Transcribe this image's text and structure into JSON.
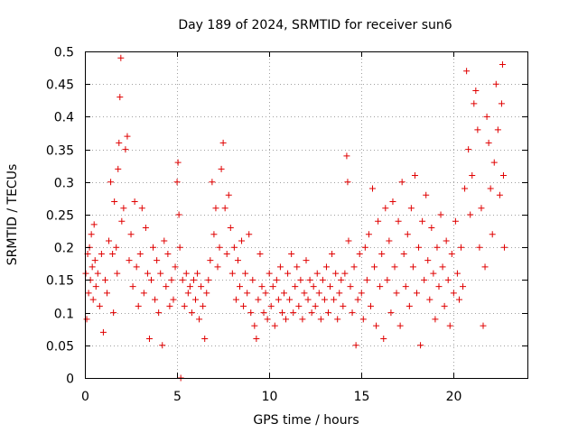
{
  "chart_data": {
    "type": "scatter",
    "title": "Day 189 of 2024, SRMTID for receiver sun6",
    "xlabel": "GPS time / hours",
    "ylabel": "SRMTID / TECUs",
    "xlim": [
      0,
      24
    ],
    "ylim": [
      0,
      0.5
    ],
    "xticks": [
      0,
      5,
      10,
      15,
      20
    ],
    "xtick_labels": [
      "0",
      "5",
      "10",
      "15",
      "20"
    ],
    "yticks": [
      0,
      0.05,
      0.1,
      0.15,
      0.2,
      0.25,
      0.3,
      0.35,
      0.4,
      0.45,
      0.5
    ],
    "ytick_labels": [
      "0",
      "0.05",
      "0.1",
      "0.15",
      "0.2",
      "0.25",
      "0.3",
      "0.35",
      "0.4",
      "0.45",
      "0.5"
    ],
    "grid": true,
    "marker": "+",
    "color": "#e00000",
    "series": [
      {
        "name": "SRMTID",
        "points": [
          [
            0.05,
            0.16
          ],
          [
            0.1,
            0.09
          ],
          [
            0.15,
            0.19
          ],
          [
            0.2,
            0.13
          ],
          [
            0.25,
            0.2
          ],
          [
            0.3,
            0.15
          ],
          [
            0.35,
            0.22
          ],
          [
            0.4,
            0.17
          ],
          [
            0.45,
            0.12
          ],
          [
            0.5,
            0.235
          ],
          [
            0.55,
            0.18
          ],
          [
            0.6,
            0.14
          ],
          [
            0.7,
            0.16
          ],
          [
            0.8,
            0.11
          ],
          [
            0.9,
            0.19
          ],
          [
            1.0,
            0.07
          ],
          [
            1.1,
            0.15
          ],
          [
            1.2,
            0.13
          ],
          [
            1.3,
            0.21
          ],
          [
            1.4,
            0.3
          ],
          [
            1.5,
            0.19
          ],
          [
            1.55,
            0.1
          ],
          [
            1.6,
            0.27
          ],
          [
            1.7,
            0.2
          ],
          [
            1.75,
            0.16
          ],
          [
            1.8,
            0.32
          ],
          [
            1.85,
            0.36
          ],
          [
            1.9,
            0.43
          ],
          [
            1.95,
            0.49
          ],
          [
            2.0,
            0.24
          ],
          [
            2.1,
            0.26
          ],
          [
            2.2,
            0.35
          ],
          [
            2.3,
            0.37
          ],
          [
            2.4,
            0.18
          ],
          [
            2.5,
            0.22
          ],
          [
            2.6,
            0.14
          ],
          [
            2.7,
            0.27
          ],
          [
            2.8,
            0.17
          ],
          [
            2.9,
            0.11
          ],
          [
            3.0,
            0.19
          ],
          [
            3.1,
            0.26
          ],
          [
            3.2,
            0.13
          ],
          [
            3.3,
            0.23
          ],
          [
            3.4,
            0.16
          ],
          [
            3.5,
            0.06
          ],
          [
            3.6,
            0.15
          ],
          [
            3.7,
            0.2
          ],
          [
            3.8,
            0.12
          ],
          [
            3.9,
            0.18
          ],
          [
            4.0,
            0.1
          ],
          [
            4.1,
            0.16
          ],
          [
            4.2,
            0.05
          ],
          [
            4.3,
            0.21
          ],
          [
            4.4,
            0.14
          ],
          [
            4.5,
            0.19
          ],
          [
            4.6,
            0.11
          ],
          [
            4.7,
            0.15
          ],
          [
            4.8,
            0.12
          ],
          [
            4.9,
            0.17
          ],
          [
            5.0,
            0.3
          ],
          [
            5.05,
            0.33
          ],
          [
            5.1,
            0.25
          ],
          [
            5.15,
            0.2
          ],
          [
            5.2,
            0.0
          ],
          [
            5.3,
            0.15
          ],
          [
            5.4,
            0.11
          ],
          [
            5.5,
            0.16
          ],
          [
            5.6,
            0.13
          ],
          [
            5.7,
            0.14
          ],
          [
            5.8,
            0.1
          ],
          [
            5.9,
            0.15
          ],
          [
            6.0,
            0.12
          ],
          [
            6.1,
            0.16
          ],
          [
            6.2,
            0.09
          ],
          [
            6.3,
            0.14
          ],
          [
            6.4,
            0.11
          ],
          [
            6.5,
            0.06
          ],
          [
            6.6,
            0.13
          ],
          [
            6.7,
            0.15
          ],
          [
            6.8,
            0.18
          ],
          [
            6.9,
            0.3
          ],
          [
            7.0,
            0.22
          ],
          [
            7.1,
            0.26
          ],
          [
            7.2,
            0.17
          ],
          [
            7.3,
            0.2
          ],
          [
            7.4,
            0.32
          ],
          [
            7.5,
            0.36
          ],
          [
            7.6,
            0.26
          ],
          [
            7.7,
            0.19
          ],
          [
            7.8,
            0.28
          ],
          [
            7.9,
            0.23
          ],
          [
            8.0,
            0.16
          ],
          [
            8.1,
            0.2
          ],
          [
            8.2,
            0.12
          ],
          [
            8.3,
            0.18
          ],
          [
            8.4,
            0.14
          ],
          [
            8.5,
            0.21
          ],
          [
            8.6,
            0.11
          ],
          [
            8.7,
            0.16
          ],
          [
            8.8,
            0.13
          ],
          [
            8.9,
            0.22
          ],
          [
            9.0,
            0.1
          ],
          [
            9.1,
            0.15
          ],
          [
            9.2,
            0.08
          ],
          [
            9.3,
            0.06
          ],
          [
            9.4,
            0.12
          ],
          [
            9.5,
            0.19
          ],
          [
            9.6,
            0.14
          ],
          [
            9.7,
            0.1
          ],
          [
            9.8,
            0.13
          ],
          [
            9.9,
            0.09
          ],
          [
            10.0,
            0.16
          ],
          [
            10.1,
            0.11
          ],
          [
            10.2,
            0.14
          ],
          [
            10.3,
            0.08
          ],
          [
            10.4,
            0.15
          ],
          [
            10.5,
            0.12
          ],
          [
            10.6,
            0.17
          ],
          [
            10.7,
            0.1
          ],
          [
            10.8,
            0.13
          ],
          [
            10.9,
            0.09
          ],
          [
            11.0,
            0.16
          ],
          [
            11.1,
            0.12
          ],
          [
            11.2,
            0.19
          ],
          [
            11.3,
            0.1
          ],
          [
            11.4,
            0.14
          ],
          [
            11.5,
            0.17
          ],
          [
            11.6,
            0.11
          ],
          [
            11.7,
            0.15
          ],
          [
            11.8,
            0.09
          ],
          [
            11.9,
            0.13
          ],
          [
            12.0,
            0.18
          ],
          [
            12.1,
            0.12
          ],
          [
            12.2,
            0.15
          ],
          [
            12.3,
            0.1
          ],
          [
            12.4,
            0.14
          ],
          [
            12.5,
            0.11
          ],
          [
            12.6,
            0.16
          ],
          [
            12.7,
            0.13
          ],
          [
            12.8,
            0.09
          ],
          [
            12.9,
            0.15
          ],
          [
            13.0,
            0.12
          ],
          [
            13.1,
            0.17
          ],
          [
            13.2,
            0.1
          ],
          [
            13.3,
            0.14
          ],
          [
            13.4,
            0.19
          ],
          [
            13.5,
            0.12
          ],
          [
            13.6,
            0.16
          ],
          [
            13.7,
            0.09
          ],
          [
            13.8,
            0.13
          ],
          [
            13.9,
            0.15
          ],
          [
            14.0,
            0.11
          ],
          [
            14.1,
            0.16
          ],
          [
            14.2,
            0.34
          ],
          [
            14.25,
            0.3
          ],
          [
            14.3,
            0.21
          ],
          [
            14.4,
            0.14
          ],
          [
            14.5,
            0.1
          ],
          [
            14.6,
            0.17
          ],
          [
            14.7,
            0.05
          ],
          [
            14.8,
            0.12
          ],
          [
            14.9,
            0.19
          ],
          [
            15.0,
            0.13
          ],
          [
            15.1,
            0.09
          ],
          [
            15.2,
            0.2
          ],
          [
            15.3,
            0.15
          ],
          [
            15.4,
            0.22
          ],
          [
            15.5,
            0.11
          ],
          [
            15.6,
            0.29
          ],
          [
            15.7,
            0.17
          ],
          [
            15.8,
            0.08
          ],
          [
            15.9,
            0.24
          ],
          [
            16.0,
            0.14
          ],
          [
            16.1,
            0.19
          ],
          [
            16.2,
            0.06
          ],
          [
            16.3,
            0.26
          ],
          [
            16.4,
            0.15
          ],
          [
            16.5,
            0.21
          ],
          [
            16.6,
            0.1
          ],
          [
            16.7,
            0.27
          ],
          [
            16.8,
            0.17
          ],
          [
            16.9,
            0.13
          ],
          [
            17.0,
            0.24
          ],
          [
            17.1,
            0.08
          ],
          [
            17.2,
            0.3
          ],
          [
            17.3,
            0.19
          ],
          [
            17.4,
            0.14
          ],
          [
            17.5,
            0.22
          ],
          [
            17.6,
            0.11
          ],
          [
            17.7,
            0.26
          ],
          [
            17.8,
            0.17
          ],
          [
            17.9,
            0.31
          ],
          [
            18.0,
            0.13
          ],
          [
            18.1,
            0.2
          ],
          [
            18.2,
            0.05
          ],
          [
            18.3,
            0.24
          ],
          [
            18.4,
            0.15
          ],
          [
            18.5,
            0.28
          ],
          [
            18.6,
            0.18
          ],
          [
            18.7,
            0.12
          ],
          [
            18.8,
            0.23
          ],
          [
            18.9,
            0.16
          ],
          [
            19.0,
            0.09
          ],
          [
            19.1,
            0.2
          ],
          [
            19.2,
            0.14
          ],
          [
            19.3,
            0.25
          ],
          [
            19.4,
            0.17
          ],
          [
            19.5,
            0.11
          ],
          [
            19.6,
            0.21
          ],
          [
            19.7,
            0.15
          ],
          [
            19.8,
            0.08
          ],
          [
            19.9,
            0.19
          ],
          [
            20.0,
            0.13
          ],
          [
            20.1,
            0.24
          ],
          [
            20.2,
            0.16
          ],
          [
            20.3,
            0.12
          ],
          [
            20.4,
            0.2
          ],
          [
            20.5,
            0.14
          ],
          [
            20.6,
            0.29
          ],
          [
            20.7,
            0.47
          ],
          [
            20.8,
            0.35
          ],
          [
            20.9,
            0.25
          ],
          [
            21.0,
            0.31
          ],
          [
            21.1,
            0.42
          ],
          [
            21.2,
            0.44
          ],
          [
            21.3,
            0.38
          ],
          [
            21.4,
            0.2
          ],
          [
            21.5,
            0.26
          ],
          [
            21.6,
            0.08
          ],
          [
            21.7,
            0.17
          ],
          [
            21.8,
            0.4
          ],
          [
            21.9,
            0.36
          ],
          [
            22.0,
            0.29
          ],
          [
            22.1,
            0.22
          ],
          [
            22.2,
            0.33
          ],
          [
            22.3,
            0.45
          ],
          [
            22.4,
            0.38
          ],
          [
            22.5,
            0.28
          ],
          [
            22.6,
            0.42
          ],
          [
            22.65,
            0.48
          ],
          [
            22.7,
            0.31
          ],
          [
            22.75,
            0.2
          ]
        ]
      }
    ]
  }
}
